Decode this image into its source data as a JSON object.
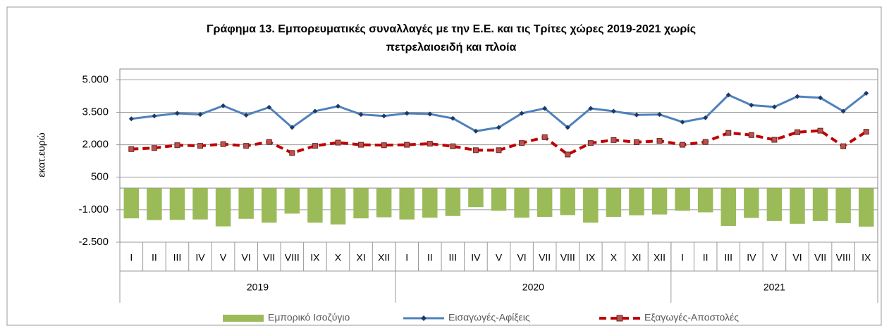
{
  "chart_data": {
    "type": "combo",
    "title": [
      "Γράφημα 13. Εμπορευματικές συναλλαγές με την Ε.Ε. και τις Τρίτες χώρες  2019-2021  χωρίς",
      "πετρελαιοειδή και πλοία"
    ],
    "y_label": "εκατ.ευρώ",
    "groups": [
      {
        "label": "2019",
        "months": [
          "I",
          "II",
          "III",
          "IV",
          "V",
          "VI",
          "VII",
          "VIII",
          "IX",
          "X",
          "XI",
          "XII"
        ]
      },
      {
        "label": "2020",
        "months": [
          "I",
          "II",
          "III",
          "IV",
          "V",
          "VI",
          "VII",
          "VIII",
          "IX",
          "X",
          "XI",
          "XII"
        ]
      },
      {
        "label": "2021",
        "months": [
          "I",
          "II",
          "III",
          "IV",
          "V",
          "VI",
          "VII",
          "VIII",
          "IX"
        ]
      }
    ],
    "ylim": [
      -2500,
      5500
    ],
    "yticks": [
      {
        "value": -2500,
        "label": "-2.500"
      },
      {
        "value": -1000,
        "label": "-1.000"
      },
      500,
      {
        "value": 2000,
        "label": "2.000"
      },
      {
        "value": 3500,
        "label": "3.500"
      },
      {
        "value": 5000,
        "label": "5.000"
      }
    ],
    "grid": true,
    "legend": "bottom",
    "series": [
      {
        "name": "Εμπορικό Ισοζύγιο",
        "kind": "bar",
        "color": "#9bbb59",
        "values": [
          -1400,
          -1480,
          -1470,
          -1450,
          -1770,
          -1420,
          -1600,
          -1180,
          -1600,
          -1680,
          -1400,
          -1350,
          -1450,
          -1370,
          -1290,
          -880,
          -1050,
          -1370,
          -1330,
          -1250,
          -1600,
          -1330,
          -1260,
          -1220,
          -1050,
          -1120,
          -1750,
          -1380,
          -1520,
          -1650,
          -1520,
          -1620,
          -1780
        ]
      },
      {
        "name": "Εισαγωγές-Αφίξεις",
        "kind": "line",
        "color": "#4f81bd",
        "values": [
          3200,
          3330,
          3450,
          3400,
          3800,
          3370,
          3730,
          2800,
          3550,
          3780,
          3400,
          3330,
          3450,
          3420,
          3220,
          2630,
          2800,
          3450,
          3680,
          2800,
          3680,
          3550,
          3380,
          3400,
          3050,
          3250,
          4300,
          3830,
          3750,
          4230,
          4170,
          3550,
          4380
        ]
      },
      {
        "name": "Εξαγωγές-Αποστολές",
        "kind": "dashed-line",
        "color": "#c00000",
        "values": [
          1800,
          1850,
          1980,
          1950,
          2030,
          1950,
          2130,
          1620,
          1950,
          2100,
          2000,
          1980,
          2000,
          2050,
          1930,
          1750,
          1750,
          2080,
          2350,
          1550,
          2080,
          2220,
          2120,
          2180,
          2000,
          2130,
          2550,
          2450,
          2230,
          2580,
          2650,
          1930,
          2600
        ]
      }
    ]
  }
}
